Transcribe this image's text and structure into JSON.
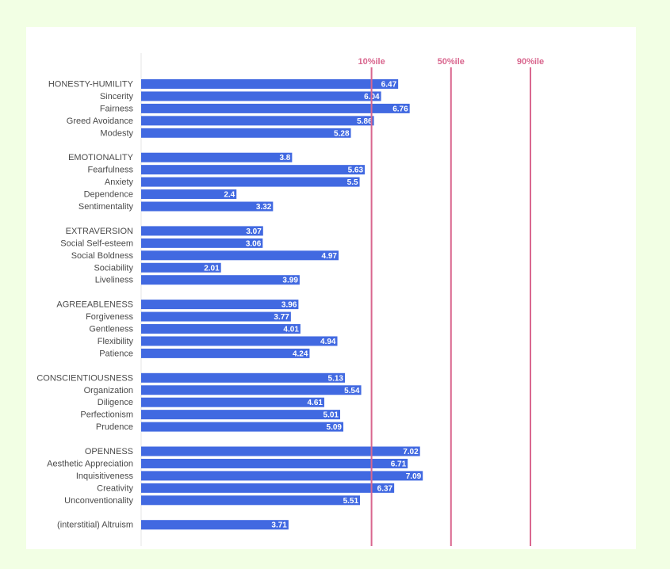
{
  "chart_data": {
    "type": "bar",
    "orientation": "horizontal",
    "bar_color": "#4169e1",
    "reference_color": "#d9668e",
    "label_color": "#ffffff",
    "xlim": [
      0,
      10.3
    ],
    "reference_lines": [
      {
        "label": "10%ile",
        "value": 5.8
      },
      {
        "label": "50%ile",
        "value": 7.8
      },
      {
        "label": "90%ile",
        "value": 9.8
      }
    ],
    "categories": [
      "HONESTY-HUMILITY",
      "Sincerity",
      "Fairness",
      "Greed Avoidance",
      "Modesty",
      "",
      "EMOTIONALITY",
      "Fearfulness",
      "Anxiety",
      "Dependence",
      "Sentimentality",
      "",
      "EXTRAVERSION",
      "Social Self-esteem",
      "Social Boldness",
      "Sociability",
      "Liveliness",
      "",
      "AGREEABLENESS",
      "Forgiveness",
      "Gentleness",
      "Flexibility",
      "Patience",
      "",
      "CONSCIENTIOUSNESS",
      "Organization",
      "Diligence",
      "Perfectionism",
      "Prudence",
      "",
      "OPENNESS",
      "Aesthetic Appreciation",
      "Inquisitiveness",
      "Creativity",
      "Unconventionality",
      "",
      "(interstitial) Altruism"
    ],
    "values": [
      6.47,
      6.04,
      6.76,
      5.86,
      5.28,
      null,
      3.8,
      5.63,
      5.5,
      2.4,
      3.32,
      null,
      3.07,
      3.06,
      4.97,
      2.01,
      3.99,
      null,
      3.96,
      3.77,
      4.01,
      4.94,
      4.24,
      null,
      5.13,
      5.54,
      4.61,
      5.01,
      5.09,
      null,
      7.02,
      6.71,
      7.09,
      6.37,
      5.51,
      null,
      3.71
    ],
    "value_labels": [
      "6.47",
      "6.04",
      "6.76",
      "5.86",
      "5.28",
      "",
      "3.8",
      "5.63",
      "5.5",
      "2.4",
      "3.32",
      "",
      "3.07",
      "3.06",
      "4.97",
      "2.01",
      "3.99",
      "",
      "3.96",
      "3.77",
      "4.01",
      "4.94",
      "4.24",
      "",
      "5.13",
      "5.54",
      "4.61",
      "5.01",
      "5.09",
      "",
      "7.02",
      "6.71",
      "7.09",
      "6.37",
      "5.51",
      "",
      "3.71"
    ]
  }
}
